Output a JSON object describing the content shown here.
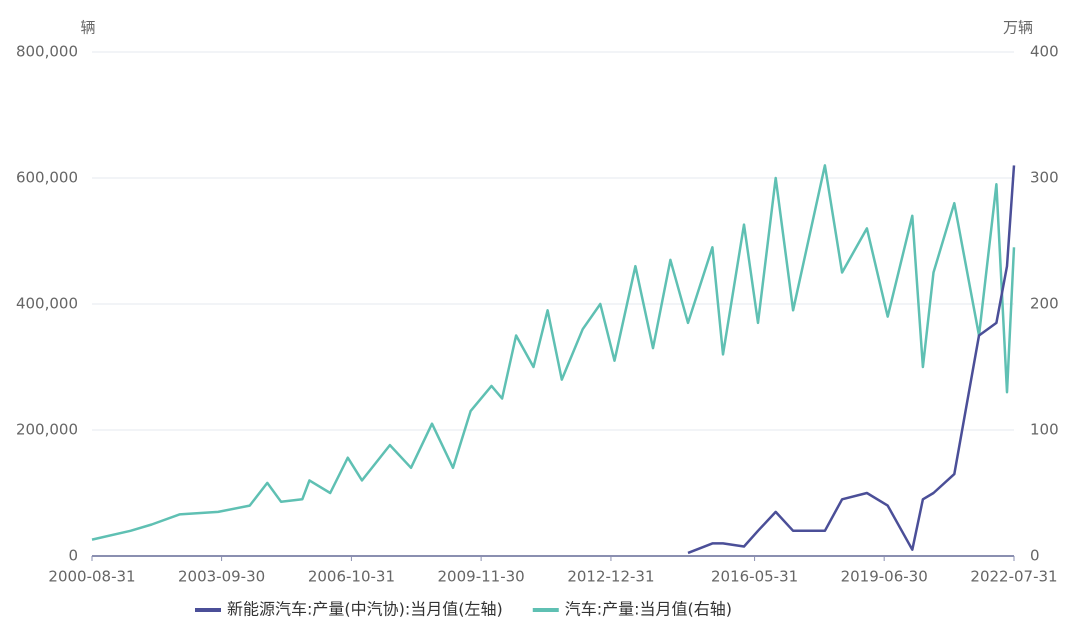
{
  "chart_data": {
    "type": "line",
    "y_unit": "辆",
    "y2_unit": "万辆",
    "x": [
      "2000-08-31",
      "2001-07-31",
      "2002-01-31",
      "2002-09-30",
      "2003-08-31",
      "2004-05-31",
      "2004-10-31",
      "2005-02-28",
      "2005-08-31",
      "2005-10-31",
      "2006-04-30",
      "2006-09-30",
      "2007-01-31",
      "2007-09-30",
      "2008-03-31",
      "2008-09-30",
      "2009-03-31",
      "2009-08-31",
      "2010-02-28",
      "2010-05-31",
      "2010-09-30",
      "2011-02-28",
      "2011-06-30",
      "2011-10-31",
      "2012-04-30",
      "2012-09-30",
      "2013-01-31",
      "2013-07-31",
      "2013-12-31",
      "2014-05-31",
      "2014-10-31",
      "2015-05-31",
      "2015-08-31",
      "2016-02-29",
      "2016-06-30",
      "2016-11-30",
      "2017-04-30",
      "2018-01-31",
      "2018-06-30",
      "2019-01-31",
      "2019-07-31",
      "2020-02-29",
      "2020-05-31",
      "2020-08-31",
      "2021-02-28",
      "2021-09-30",
      "2022-02-28",
      "2022-05-31",
      "2022-07-31"
    ],
    "series": [
      {
        "name": "新能源汽车:产量(中汽协):当月值(左轴)",
        "color": "#4b4f98",
        "values": [
          null,
          null,
          null,
          null,
          null,
          null,
          null,
          null,
          null,
          null,
          null,
          null,
          null,
          null,
          null,
          null,
          null,
          null,
          null,
          null,
          null,
          null,
          null,
          null,
          null,
          null,
          null,
          null,
          null,
          null,
          5000,
          20000,
          20000,
          15000,
          40000,
          70000,
          40000,
          40000,
          90000,
          100000,
          80000,
          10000,
          90000,
          100000,
          130000,
          350000,
          370000,
          460000,
          620000
        ]
      },
      {
        "name": "汽车:产量:当月值(右轴)",
        "color": "#5fc0b3",
        "axis": "y2",
        "values": [
          13,
          20,
          25,
          33,
          35,
          40,
          58,
          43,
          45,
          60,
          50,
          78,
          60,
          88,
          70,
          105,
          70,
          115,
          135,
          125,
          175,
          150,
          195,
          140,
          180,
          200,
          155,
          230,
          165,
          235,
          185,
          245,
          160,
          263,
          185,
          300,
          195,
          310,
          225,
          260,
          190,
          270,
          150,
          225,
          280,
          175,
          295,
          130,
          245
        ]
      }
    ],
    "ylim": [
      0,
      800000
    ],
    "yticks": [
      0,
      {
        "value": 200000,
        "label": "200,000"
      },
      {
        "value": 400000,
        "label": "400,000"
      },
      {
        "value": 600000,
        "label": "600,000"
      },
      {
        "value": 800000,
        "label": "800,000"
      }
    ],
    "y2lim": [
      0,
      400
    ],
    "y2ticks": [
      0,
      100,
      200,
      300,
      400
    ],
    "xticks": [
      "2000-08-31",
      "2003-09-30",
      "2006-10-31",
      "2009-11-30",
      "2012-12-31",
      "2016-05-31",
      "2019-06-30",
      "2022-07-31"
    ],
    "grid": true,
    "legend": "bottom"
  }
}
